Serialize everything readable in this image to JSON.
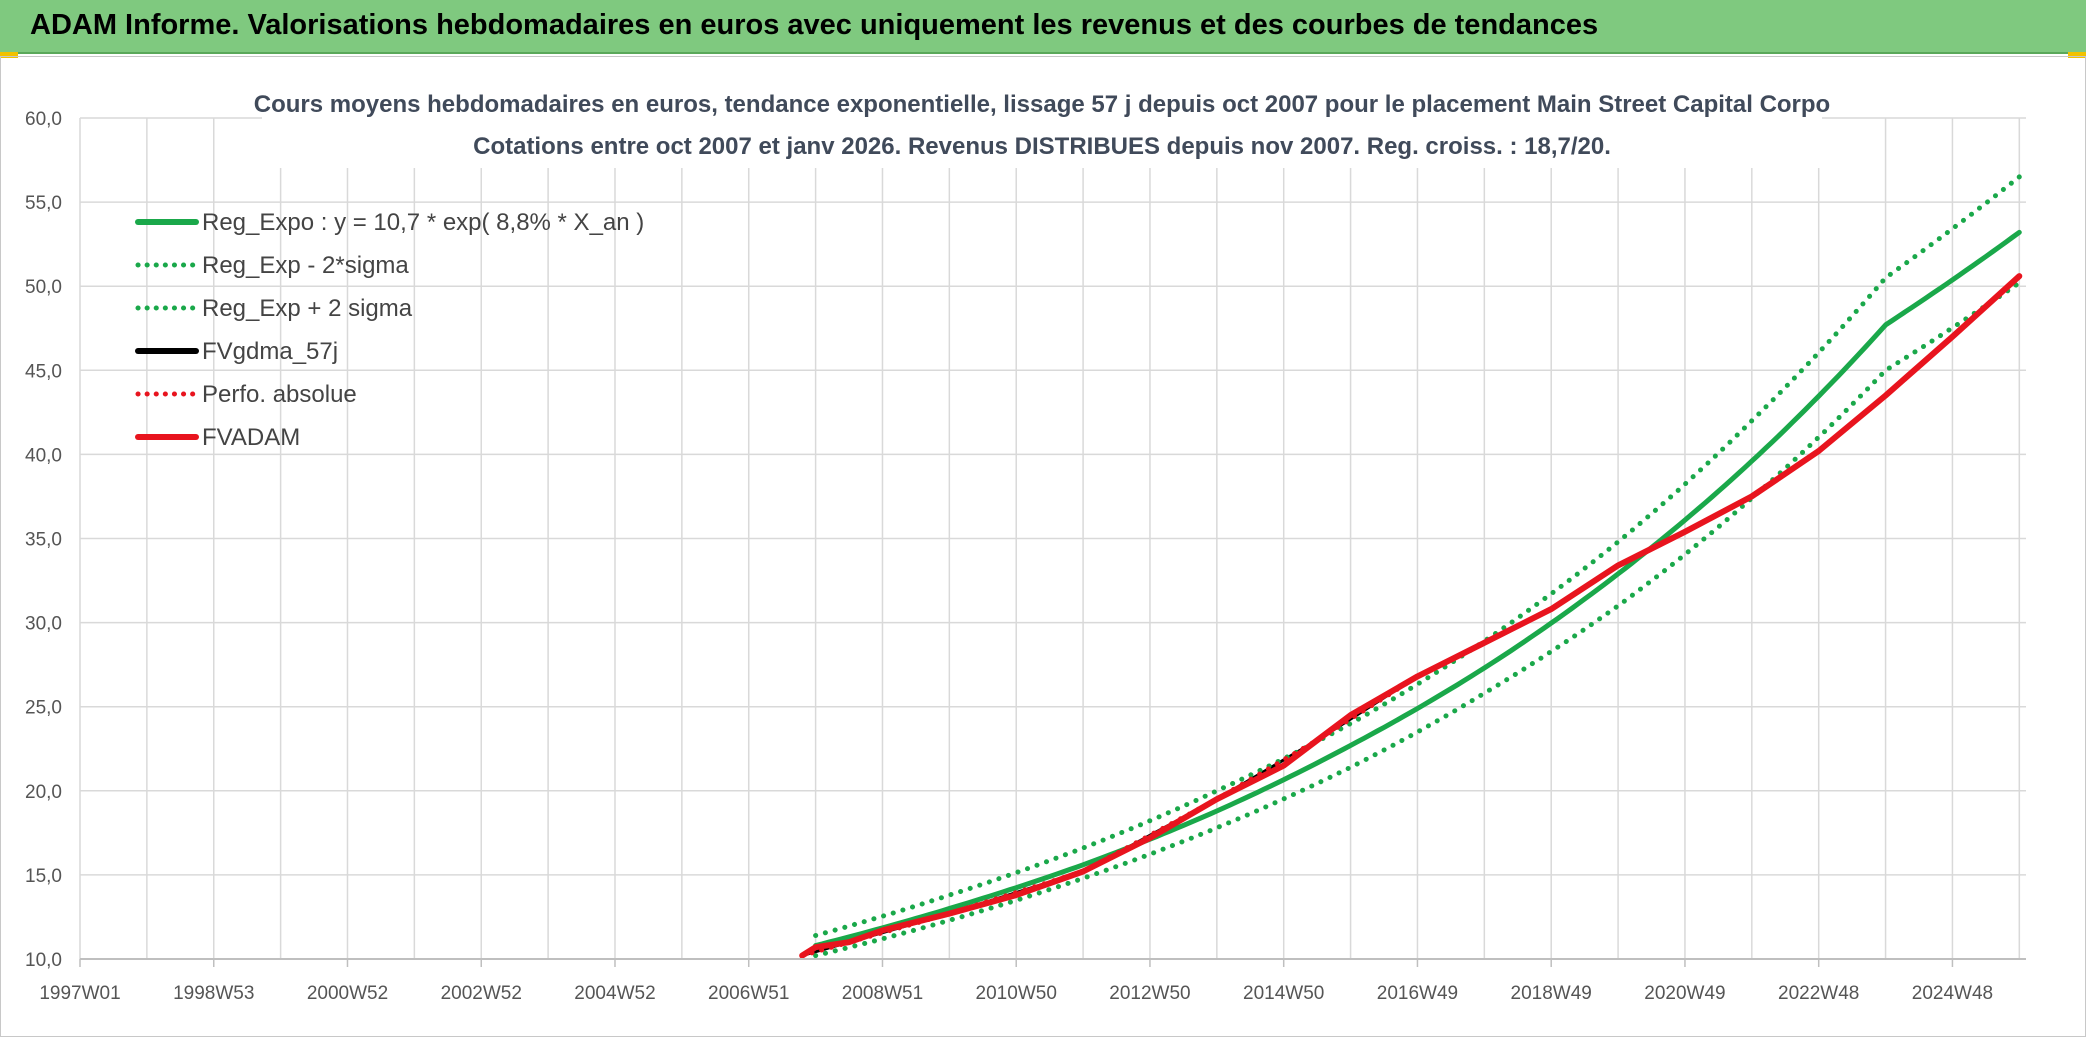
{
  "banner": {
    "title": "ADAM Informe. Valorisations hebdomadaires en euros avec uniquement les revenus et des courbes de tendances"
  },
  "colors": {
    "banner_bg": "#7fc97f",
    "reg_green": "#1aa84a",
    "adam_red": "#e8141e",
    "black": "#000000",
    "grid": "#d9d9d9"
  },
  "chart_data": {
    "type": "line",
    "title": "Cours moyens hebdomadaires en euros, tendance exponentielle, lissage 57 j depuis oct 2007 pour le placement Main Street Capital Corpo",
    "subtitle": "Cotations entre oct 2007 et janv 2026. Revenus DISTRIBUES depuis nov 2007. Reg. croiss. : 18,7/20.",
    "xlabel": "",
    "ylabel": "",
    "ylim": [
      10,
      60
    ],
    "yticks": [
      "10,0",
      "15,0",
      "20,0",
      "25,0",
      "30,0",
      "35,0",
      "40,0",
      "45,0",
      "50,0",
      "55,0",
      "60,0"
    ],
    "xlim": [
      1997.0,
      2026.1
    ],
    "xticks": [
      {
        "x": 1997.0,
        "label": "1997W01"
      },
      {
        "x": 1999.0,
        "label": "1998W53"
      },
      {
        "x": 2001.0,
        "label": "2000W52"
      },
      {
        "x": 2003.0,
        "label": "2002W52"
      },
      {
        "x": 2005.0,
        "label": "2004W52"
      },
      {
        "x": 2007.0,
        "label": "2006W51"
      },
      {
        "x": 2009.0,
        "label": "2008W51"
      },
      {
        "x": 2011.0,
        "label": "2010W50"
      },
      {
        "x": 2013.0,
        "label": "2012W50"
      },
      {
        "x": 2015.0,
        "label": "2014W50"
      },
      {
        "x": 2017.0,
        "label": "2016W49"
      },
      {
        "x": 2019.0,
        "label": "2018W49"
      },
      {
        "x": 2021.0,
        "label": "2020W49"
      },
      {
        "x": 2023.0,
        "label": "2022W48"
      },
      {
        "x": 2025.0,
        "label": "2024W48"
      }
    ],
    "grid": true,
    "legend_position": "top-left",
    "series": [
      {
        "name": "Reg_Expo : y = 10,7 * exp( 8,8% *  X_an )",
        "color": "#1aa84a",
        "style": "solid",
        "x": [
          2008.0,
          2010.0,
          2012.0,
          2014.0,
          2016.0,
          2018.0,
          2020.0,
          2022.0,
          2024.0,
          2026.0
        ],
        "y": [
          10.8,
          13.0,
          15.6,
          18.8,
          22.7,
          27.3,
          32.9,
          39.6,
          47.7,
          53.2
        ]
      },
      {
        "name": "Reg_Exp - 2*sigma",
        "color": "#1aa84a",
        "style": "dotted",
        "x": [
          2008.0,
          2010.0,
          2012.0,
          2014.0,
          2016.0,
          2018.0,
          2020.0,
          2022.0,
          2024.0,
          2026.0
        ],
        "y": [
          10.2,
          12.3,
          14.8,
          17.8,
          21.4,
          25.8,
          31.0,
          37.4,
          45.0,
          50.2
        ]
      },
      {
        "name": "Reg_Exp + 2 sigma",
        "color": "#1aa84a",
        "style": "dotted",
        "x": [
          2008.0,
          2010.0,
          2012.0,
          2014.0,
          2016.0,
          2018.0,
          2020.0,
          2022.0,
          2024.0,
          2026.0
        ],
        "y": [
          11.4,
          13.8,
          16.6,
          20.0,
          24.0,
          28.9,
          34.8,
          42.0,
          50.5,
          56.5
        ]
      },
      {
        "name": "FVgdma_57j",
        "color": "#000000",
        "style": "solid",
        "x": [
          2007.8,
          2008.5,
          2010.0,
          2012.0,
          2014.0,
          2015.5,
          2017.0,
          2019.0,
          2020.0,
          2021.0,
          2022.0,
          2023.0,
          2024.0,
          2025.0,
          2026.0
        ],
        "y": [
          10.2,
          11.0,
          12.7,
          15.2,
          19.5,
          23.0,
          26.8,
          30.8,
          33.4,
          35.4,
          37.5,
          40.2,
          43.5,
          47.0,
          50.6
        ]
      },
      {
        "name": "Perfo. absolue",
        "color": "#e8141e",
        "style": "dotted",
        "x": [
          2007.8,
          2008.5,
          2010.0,
          2012.0,
          2014.0,
          2015.5,
          2017.0,
          2019.0,
          2020.0,
          2021.0,
          2022.0,
          2023.0,
          2024.0,
          2025.0,
          2026.0
        ],
        "y": [
          10.2,
          11.0,
          12.7,
          15.2,
          19.5,
          23.0,
          26.8,
          30.8,
          33.4,
          35.4,
          37.5,
          40.2,
          43.5,
          47.0,
          50.6
        ]
      },
      {
        "name": "FVADAM",
        "color": "#e8141e",
        "style": "solid",
        "x": [
          2007.8,
          2008.0,
          2008.5,
          2009.0,
          2010.0,
          2011.0,
          2012.0,
          2013.0,
          2014.0,
          2015.0,
          2015.5,
          2016.0,
          2017.0,
          2018.0,
          2019.0,
          2020.0,
          2021.0,
          2022.0,
          2023.0,
          2024.0,
          2025.0,
          2026.0
        ],
        "y": [
          10.2,
          10.7,
          11.0,
          11.7,
          12.7,
          13.8,
          15.2,
          17.2,
          19.5,
          21.5,
          23.0,
          24.5,
          26.8,
          28.8,
          30.8,
          33.4,
          35.4,
          37.5,
          40.2,
          43.5,
          47.0,
          50.6
        ]
      }
    ]
  }
}
